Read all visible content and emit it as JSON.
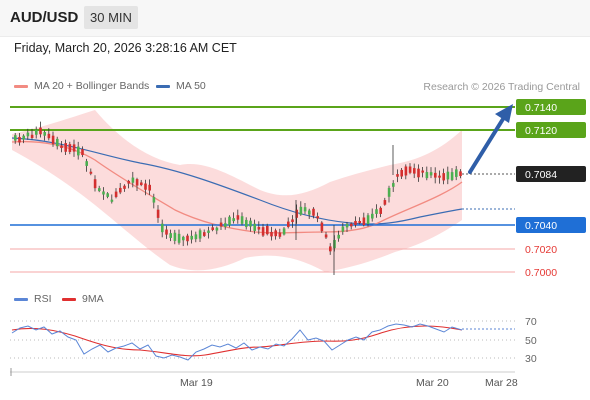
{
  "header": {
    "symbol": "AUD/USD",
    "timeframe": "30 MIN"
  },
  "datetime": "Friday, March 20, 2026 3:28:16 AM CET",
  "legend": {
    "ma20_label": "MA 20 + Bollinger Bands",
    "ma50_label": "MA 50",
    "ma20_color": "#f28b82",
    "ma50_color": "#3b6cb3"
  },
  "credit": "Research © 2026 Trading Central",
  "levels": {
    "target2": {
      "label": "0.7140",
      "color": "#5aa41a"
    },
    "target1": {
      "label": "0.7120",
      "color": "#5aa41a"
    },
    "last": {
      "label": "0.7084",
      "color": "#222222"
    },
    "pivot": {
      "label": "0.7040",
      "color": "#1f6fd6"
    },
    "support1": {
      "label": "0.7020",
      "color": "#e53935"
    },
    "support2": {
      "label": "0.7000",
      "color": "#e53935"
    }
  },
  "rsi_legend": {
    "rsi_label": "RSI",
    "ma_label": "9MA",
    "rsi_color": "#5b86d6",
    "ma_color": "#e03030"
  },
  "rsi_axis": {
    "t70": "70",
    "t50": "50",
    "t30": "30"
  },
  "xaxis": {
    "d1": "Mar 19",
    "d2": "Mar 20",
    "d3": "Mar 28"
  },
  "colors": {
    "up": "#4caf50",
    "down": "#d32f2f",
    "band": "#fbd0d0",
    "grid": "#bbbbbb"
  },
  "chart_data": {
    "type": "candlestick",
    "symbol": "AUD/USD",
    "interval": "30 MIN",
    "price_levels": [
      0.714,
      0.712,
      0.7084,
      0.704,
      0.702,
      0.7
    ],
    "last_price": 0.7084,
    "series": [
      {
        "name": "MA 20 + Bollinger Bands"
      },
      {
        "name": "MA 50"
      }
    ],
    "rsi": {
      "levels": [
        30,
        50,
        70
      ],
      "last": 60,
      "series": [
        "RSI",
        "9MA"
      ]
    }
  }
}
